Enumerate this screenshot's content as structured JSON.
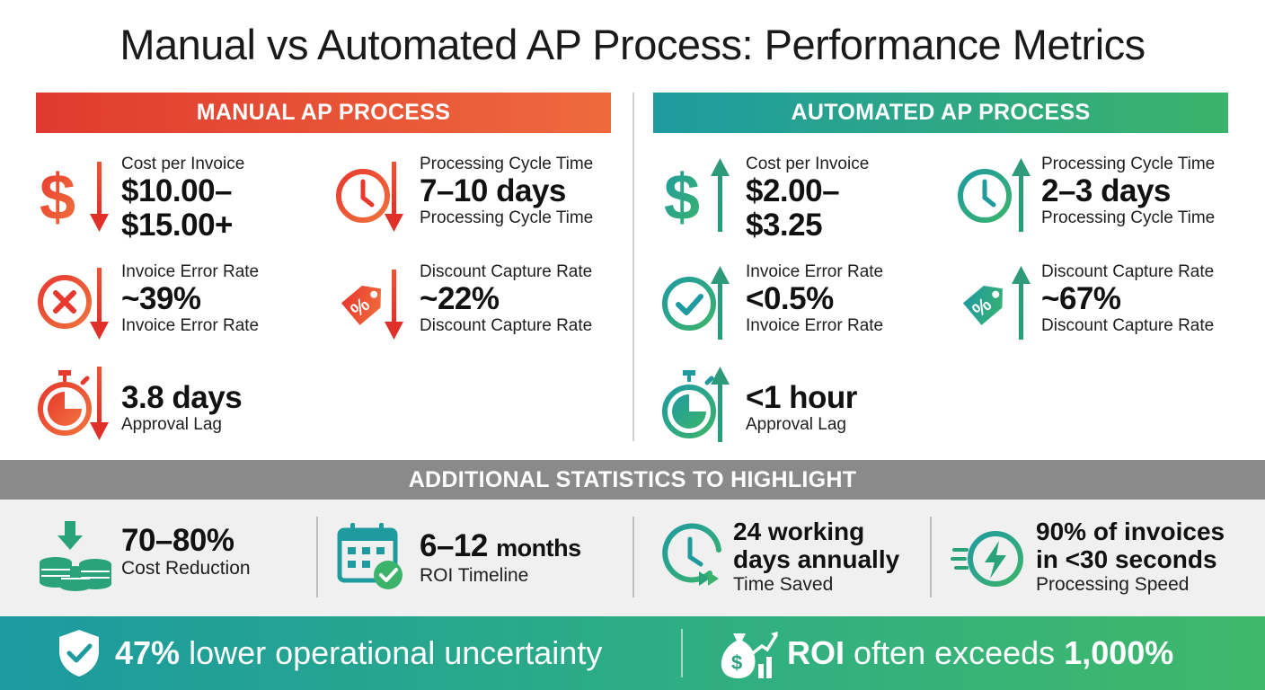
{
  "title": "Manual vs Automated AP Process: Performance Metrics",
  "colors": {
    "manual_red": "#e03a2f",
    "manual_orange": "#ee6a3d",
    "auto_teal": "#1f9ba0",
    "auto_green": "#3bb36b",
    "gray_banner": "#8a8a8a"
  },
  "manual": {
    "heading": "MANUAL AP PROCESS",
    "cost": {
      "label": "Cost per Invoice",
      "value_line1": "$10.00–",
      "value_line2": "$15.00+",
      "icon": "dollar-down-icon"
    },
    "cycle": {
      "label": "Processing Cycle Time",
      "value": "7–10 days",
      "sub": "Processing Cycle Time",
      "icon": "clock-down-icon"
    },
    "error": {
      "label": "Invoice Error Rate",
      "value": "~39%",
      "sub": "Invoice Error Rate",
      "icon": "x-circle-down-icon"
    },
    "discount": {
      "label": "Discount Capture Rate",
      "value": "~22%",
      "sub": "Discount Capture Rate",
      "icon": "tag-down-icon"
    },
    "approval": {
      "value": "3.8 days",
      "sub": "Approval Lag",
      "icon": "stopwatch-down-icon"
    }
  },
  "automated": {
    "heading": "AUTOMATED AP PROCESS",
    "cost": {
      "label": "Cost per Invoice",
      "value_line1": "$2.00–",
      "value_line2": "$3.25",
      "icon": "dollar-up-icon"
    },
    "cycle": {
      "label": "Processing Cycle Time",
      "value": "2–3 days",
      "sub": "Processing Cycle Time",
      "icon": "clock-up-icon"
    },
    "error": {
      "label": "Invoice Error Rate",
      "value": "<0.5%",
      "sub": "Invoice Error Rate",
      "icon": "check-circle-up-icon"
    },
    "discount": {
      "label": "Discount Capture Rate",
      "value": "~67%",
      "sub": "Discount Capture Rate",
      "icon": "tag-up-icon"
    },
    "approval": {
      "value": "<1 hour",
      "sub": "Approval Lag",
      "icon": "stopwatch-up-icon"
    }
  },
  "additional": {
    "heading": "ADDITIONAL STATISTICS TO HIGHLIGHT",
    "items": [
      {
        "value": "70–80%",
        "label": "Cost Reduction",
        "icon": "coins-down-icon"
      },
      {
        "value_main": "6–12",
        "value_unit": "months",
        "label": "ROI Timeline",
        "icon": "calendar-check-icon"
      },
      {
        "value_line1": "24 working",
        "value_line2": "days annually",
        "label": "Time Saved",
        "icon": "clock-forward-icon"
      },
      {
        "value_line1": "90% of invoices",
        "value_line2": "in <30 seconds",
        "label": "Processing Speed",
        "icon": "lightning-speed-icon"
      }
    ]
  },
  "footer": {
    "left": {
      "bold": "47%",
      "text": " lower operational uncertainty",
      "icon": "shield-check-icon"
    },
    "right": {
      "bold_a": "ROI",
      "text": " often exceeds ",
      "bold_b": "1,000%",
      "icon": "money-bag-chart-icon"
    }
  }
}
